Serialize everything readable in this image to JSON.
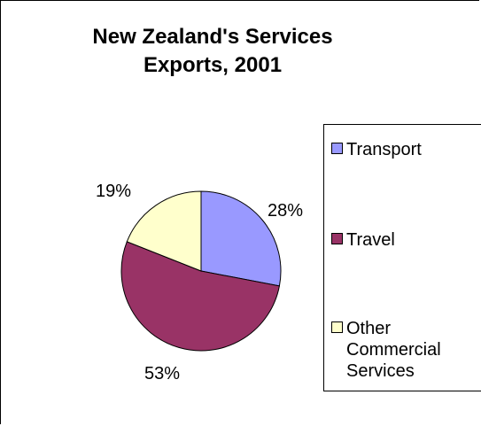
{
  "chart_data": {
    "type": "pie",
    "title": "New Zealand's Services Exports, 2001",
    "title_lines": [
      "New Zealand's Services",
      "Exports, 2001"
    ],
    "slices": [
      {
        "label": "Transport",
        "value": 28,
        "value_label": "28%",
        "color": "#9999ff"
      },
      {
        "label": "Travel",
        "value": 53,
        "value_label": "53%",
        "color": "#993366"
      },
      {
        "label": "Other Commercial Services",
        "value": 19,
        "value_label": "19%",
        "color": "#ffffcc"
      }
    ],
    "legend_position": "right",
    "legend_lines": [
      [
        "Transport"
      ],
      [
        "Travel"
      ],
      [
        "Other",
        "Commercial",
        "Services"
      ]
    ]
  }
}
